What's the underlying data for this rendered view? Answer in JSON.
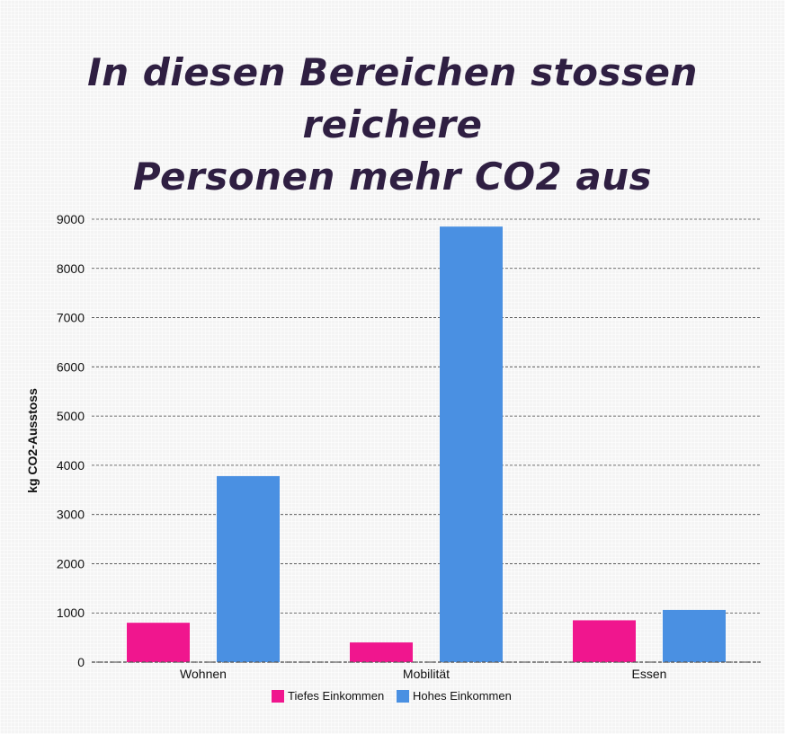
{
  "title_lines": [
    "In diesen Bereichen stossen reichere",
    "Personen mehr CO2 aus"
  ],
  "chart_data": {
    "type": "bar",
    "title": "In diesen Bereichen stossen reichere Personen mehr CO2 aus",
    "categories": [
      "Wohnen",
      "Mobilität",
      "Essen"
    ],
    "series": [
      {
        "name": "Tiefes Einkommen",
        "color": "#f0168e",
        "values": [
          800,
          400,
          850
        ]
      },
      {
        "name": "Hohes Einkommen",
        "color": "#4a90e2",
        "values": [
          3780,
          8850,
          1060
        ]
      }
    ],
    "xlabel": "",
    "ylabel": "kg CO2-Ausstoss",
    "ylim": [
      0,
      9000
    ],
    "yticks": [
      0,
      1000,
      2000,
      3000,
      4000,
      5000,
      6000,
      7000,
      8000,
      9000
    ],
    "grid": true,
    "legend_position": "bottom"
  }
}
